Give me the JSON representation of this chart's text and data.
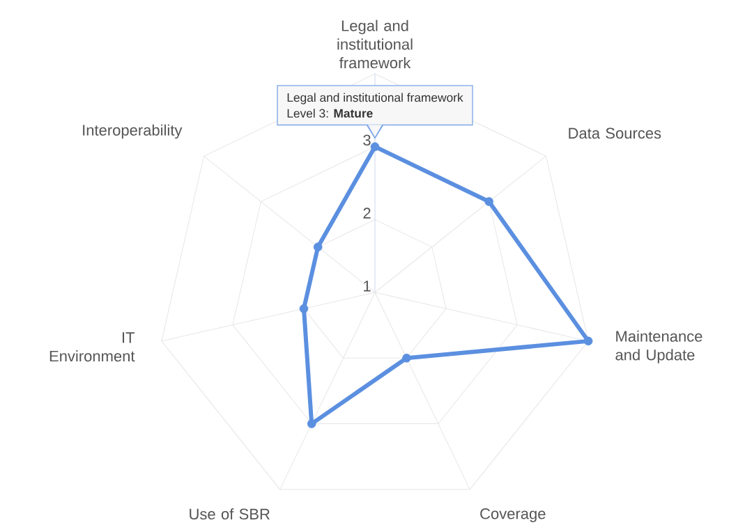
{
  "chart_data": {
    "type": "radar",
    "categories": [
      "Legal and institutional framework",
      "Data Sources",
      "Maintenance and Update",
      "Coverage",
      "Use of SBR",
      "IT Environment",
      "Interoperability"
    ],
    "series": [
      {
        "color": "#5b8fe0",
        "values": [
          3,
          3,
          4,
          2,
          3,
          2,
          2
        ]
      }
    ],
    "ylim": [
      1,
      4
    ],
    "yticks": [
      1,
      2,
      3
    ],
    "grid": true,
    "marker": "circle",
    "annotations": [
      "Legal and institutional framework",
      "Level 3: **Mature**"
    ]
  }
}
